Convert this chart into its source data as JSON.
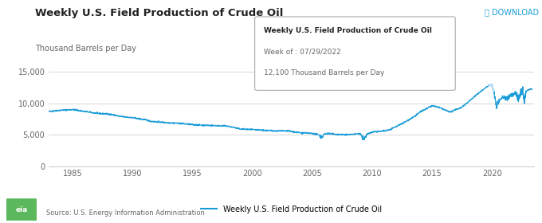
{
  "title": "Weekly U.S. Field Production of Crude Oil",
  "ylabel": "Thousand Barrels per Day",
  "download_text": "⤓ DOWNLOAD",
  "source_text": "Source: U.S. Energy Information Administration",
  "legend_label": "Weekly U.S. Field Production of Crude Oil",
  "tooltip_title": "Weekly U.S. Field Production of Crude Oil",
  "tooltip_week": "Week of : 07/29/2022",
  "tooltip_value": "12,100 Thousand Barrels per Day",
  "line_color": "#1a9cd8",
  "line_color_light": "#b8dff5",
  "bg_color": "#ffffff",
  "grid_color": "#d0d0d0",
  "yticks": [
    0,
    5000,
    10000,
    15000
  ],
  "ytick_labels": [
    "0",
    "5,000",
    "10,000",
    "15,000"
  ],
  "xticks": [
    1985,
    1990,
    1995,
    2000,
    2005,
    2010,
    2015,
    2020
  ],
  "ylim": [
    0,
    16500
  ],
  "xlim_start": 1983.0,
  "xlim_end": 2023.5
}
